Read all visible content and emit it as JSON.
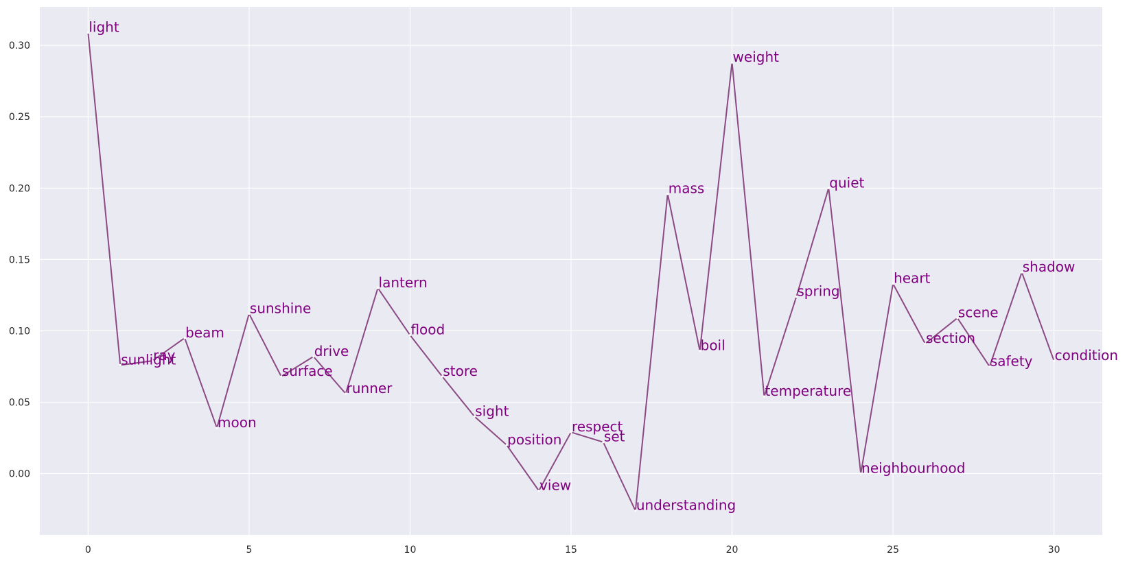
{
  "chart_data": {
    "type": "line",
    "title": "",
    "xlabel": "",
    "ylabel": "",
    "xlim": [
      -1.5,
      31.5
    ],
    "ylim": [
      -0.043,
      0.327
    ],
    "xticks": [
      0,
      5,
      10,
      15,
      20,
      25,
      30
    ],
    "xtick_labels": [
      "0",
      "5",
      "10",
      "15",
      "20",
      "25",
      "30"
    ],
    "yticks": [
      0.0,
      0.05,
      0.1,
      0.15,
      0.2,
      0.25,
      0.3
    ],
    "ytick_labels": [
      "0.00",
      "0.05",
      "0.10",
      "0.15",
      "0.20",
      "0.25",
      "0.30"
    ],
    "grid": true,
    "colors": {
      "background": "#eaeaf2",
      "grid": "#ffffff",
      "line": "#8b4a84",
      "label": "#800080",
      "marker": "#ffffff"
    },
    "points": [
      {
        "x": 0,
        "y": 0.309,
        "label": "light"
      },
      {
        "x": 1,
        "y": 0.076,
        "label": "sunlight"
      },
      {
        "x": 2,
        "y": 0.079,
        "label": "ray"
      },
      {
        "x": 3,
        "y": 0.095,
        "label": "beam"
      },
      {
        "x": 4,
        "y": 0.032,
        "label": "moon"
      },
      {
        "x": 5,
        "y": 0.112,
        "label": "sunshine"
      },
      {
        "x": 6,
        "y": 0.068,
        "label": "surface"
      },
      {
        "x": 7,
        "y": 0.082,
        "label": "drive"
      },
      {
        "x": 8,
        "y": 0.056,
        "label": "runner"
      },
      {
        "x": 9,
        "y": 0.13,
        "label": "lantern"
      },
      {
        "x": 10,
        "y": 0.097,
        "label": "flood"
      },
      {
        "x": 11,
        "y": 0.068,
        "label": "store"
      },
      {
        "x": 12,
        "y": 0.04,
        "label": "sight"
      },
      {
        "x": 13,
        "y": 0.02,
        "label": "position"
      },
      {
        "x": 14,
        "y": -0.012,
        "label": "view"
      },
      {
        "x": 15,
        "y": 0.029,
        "label": "respect"
      },
      {
        "x": 16,
        "y": 0.022,
        "label": "set"
      },
      {
        "x": 17,
        "y": -0.026,
        "label": "understanding"
      },
      {
        "x": 18,
        "y": 0.196,
        "label": "mass"
      },
      {
        "x": 19,
        "y": 0.086,
        "label": "boil"
      },
      {
        "x": 20,
        "y": 0.288,
        "label": "weight"
      },
      {
        "x": 21,
        "y": 0.054,
        "label": "temperature"
      },
      {
        "x": 22,
        "y": 0.124,
        "label": "spring"
      },
      {
        "x": 23,
        "y": 0.2,
        "label": "quiet"
      },
      {
        "x": 24,
        "y": 0.0,
        "label": "neighbourhood"
      },
      {
        "x": 25,
        "y": 0.133,
        "label": "heart"
      },
      {
        "x": 26,
        "y": 0.091,
        "label": "section"
      },
      {
        "x": 27,
        "y": 0.109,
        "label": "scene"
      },
      {
        "x": 28,
        "y": 0.075,
        "label": "safety"
      },
      {
        "x": 29,
        "y": 0.141,
        "label": "shadow"
      },
      {
        "x": 30,
        "y": 0.079,
        "label": "condition"
      }
    ]
  }
}
